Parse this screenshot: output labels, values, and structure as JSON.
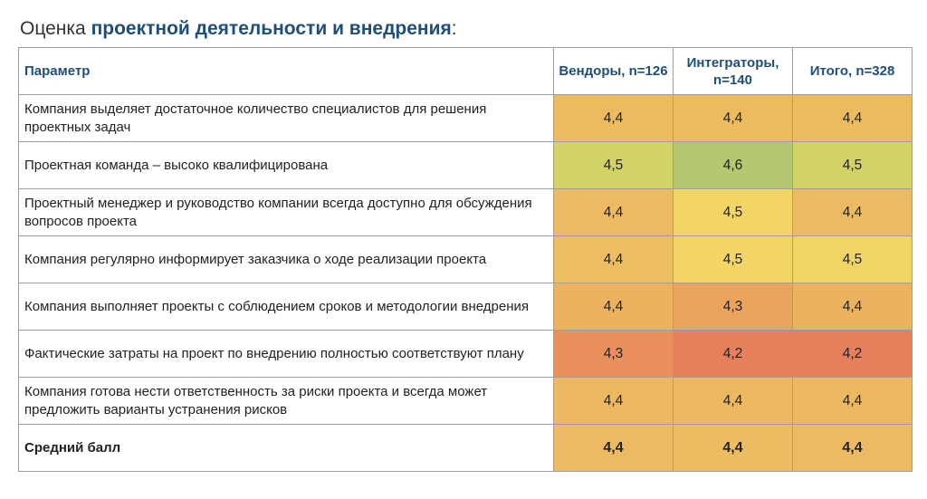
{
  "title": {
    "prefix": "Оценка ",
    "highlight": "проектной деятельности и внедрения",
    "suffix": ":"
  },
  "table": {
    "headers": {
      "param": "Параметр",
      "vendors": "Вендоры, n=126",
      "integrators": "Интеграторы, n=140",
      "total": "Итого, n=328"
    },
    "rows": [
      {
        "param": "Компания выделяет достаточное количество специалистов для решения проектных задач",
        "values": [
          "4,4",
          "4,4",
          "4,4"
        ],
        "colors": [
          "#ecbb60",
          "#ecbb60",
          "#ecbb60"
        ]
      },
      {
        "param": "Проектная команда – высоко квалифицирована",
        "values": [
          "4,5",
          "4,6",
          "4,5"
        ],
        "colors": [
          "#d1d366",
          "#b3c871",
          "#d1d366"
        ]
      },
      {
        "param": "Проектный менеджер и руководство компании всегда доступно для обсуждения вопросов проекта",
        "values": [
          "4,4",
          "4,5",
          "4,4"
        ],
        "colors": [
          "#ecba62",
          "#f2d467",
          "#ecba62"
        ]
      },
      {
        "param": "Компания регулярно информирует заказчика о ходе реализации проекта",
        "values": [
          "4,4",
          "4,5",
          "4,5"
        ],
        "colors": [
          "#edbd61",
          "#f2d467",
          "#eed565"
        ]
      },
      {
        "param": "Компания выполняет проекты с соблюдением сроков и методологии внедрения",
        "values": [
          "4,4",
          "4,3",
          "4,4"
        ],
        "colors": [
          "#ebb25f",
          "#e9a45e",
          "#ebb25f"
        ]
      },
      {
        "param": "Фактические затраты на проект по внедрению полностью соответствуют плану",
        "values": [
          "4,3",
          "4,2",
          "4,2"
        ],
        "colors": [
          "#e88f5c",
          "#e67f5b",
          "#e67f5b"
        ]
      },
      {
        "param": "Компания готова нести ответственность за риски проекта и всегда может предложить варианты устранения рисков",
        "values": [
          "4,4",
          "4,4",
          "4,4"
        ],
        "colors": [
          "#ecb962",
          "#ecb962",
          "#ecb962"
        ]
      },
      {
        "param": "Средний балл",
        "values": [
          "4,4",
          "4,4",
          "4,4"
        ],
        "colors": [
          "#ecba62",
          "#ecbb62",
          "#ecba62"
        ],
        "bold": true
      }
    ]
  }
}
